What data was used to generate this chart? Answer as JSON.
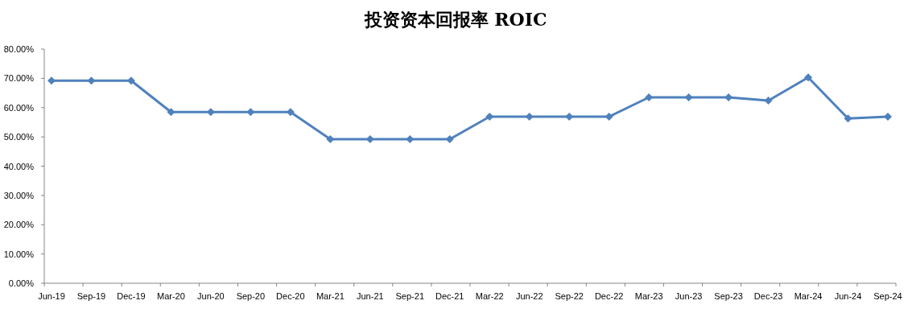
{
  "chart_data": {
    "type": "line",
    "title": "投资资本回报率 ROIC",
    "categories": [
      "Jun-19",
      "Sep-19",
      "Dec-19",
      "Mar-20",
      "Jun-20",
      "Sep-20",
      "Dec-20",
      "Mar-21",
      "Jun-21",
      "Sep-21",
      "Dec-21",
      "Mar-22",
      "Jun-22",
      "Sep-22",
      "Dec-22",
      "Mar-23",
      "Jun-23",
      "Sep-23",
      "Dec-23",
      "Mar-24",
      "Jun-24",
      "Sep-24"
    ],
    "series": [
      {
        "color": "#4f81bd",
        "values": [
          69.2,
          69.2,
          69.2,
          58.5,
          58.5,
          58.5,
          58.5,
          49.2,
          49.2,
          49.2,
          49.2,
          56.9,
          56.9,
          56.9,
          56.9,
          63.5,
          63.5,
          63.5,
          62.4,
          70.3,
          56.3,
          56.9
        ]
      }
    ],
    "ylim": [
      0,
      80
    ],
    "yticks": [
      {
        "value": 0,
        "label": "0.00%"
      },
      {
        "value": 10,
        "label": "10.00%"
      },
      {
        "value": 20,
        "label": "20.00%"
      },
      {
        "value": 30,
        "label": "30.00%"
      },
      {
        "value": 40,
        "label": "40.00%"
      },
      {
        "value": 50,
        "label": "50.00%"
      },
      {
        "value": 60,
        "label": "60.00%"
      },
      {
        "value": 70,
        "label": "70.00%"
      },
      {
        "value": 80,
        "label": "80.00%"
      }
    ],
    "grid": false,
    "marker": "diamond",
    "line_style": "solid"
  }
}
